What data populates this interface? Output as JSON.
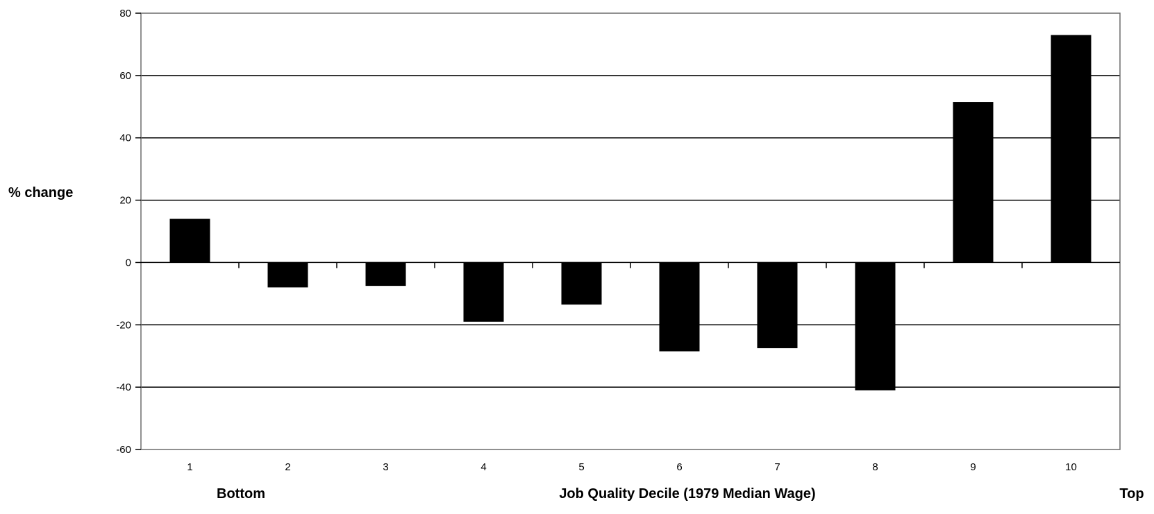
{
  "chart_data": {
    "type": "bar",
    "title": "",
    "ylabel": "% change",
    "xlabel": "Job Quality Decile (1979 Median Wage)",
    "x_end_labels": {
      "left": "Bottom",
      "right": "Top"
    },
    "categories": [
      "1",
      "2",
      "3",
      "4",
      "5",
      "6",
      "7",
      "8",
      "9",
      "10"
    ],
    "values": [
      14,
      -8,
      -7.5,
      -19,
      -13.5,
      -28.5,
      -27.5,
      -41,
      51.5,
      73
    ],
    "ylim": [
      -60,
      80
    ],
    "yticks": [
      80,
      60,
      40,
      20,
      0,
      -20,
      -40,
      -60
    ],
    "grid": true,
    "bar_color": "#000000",
    "legend": "none"
  }
}
